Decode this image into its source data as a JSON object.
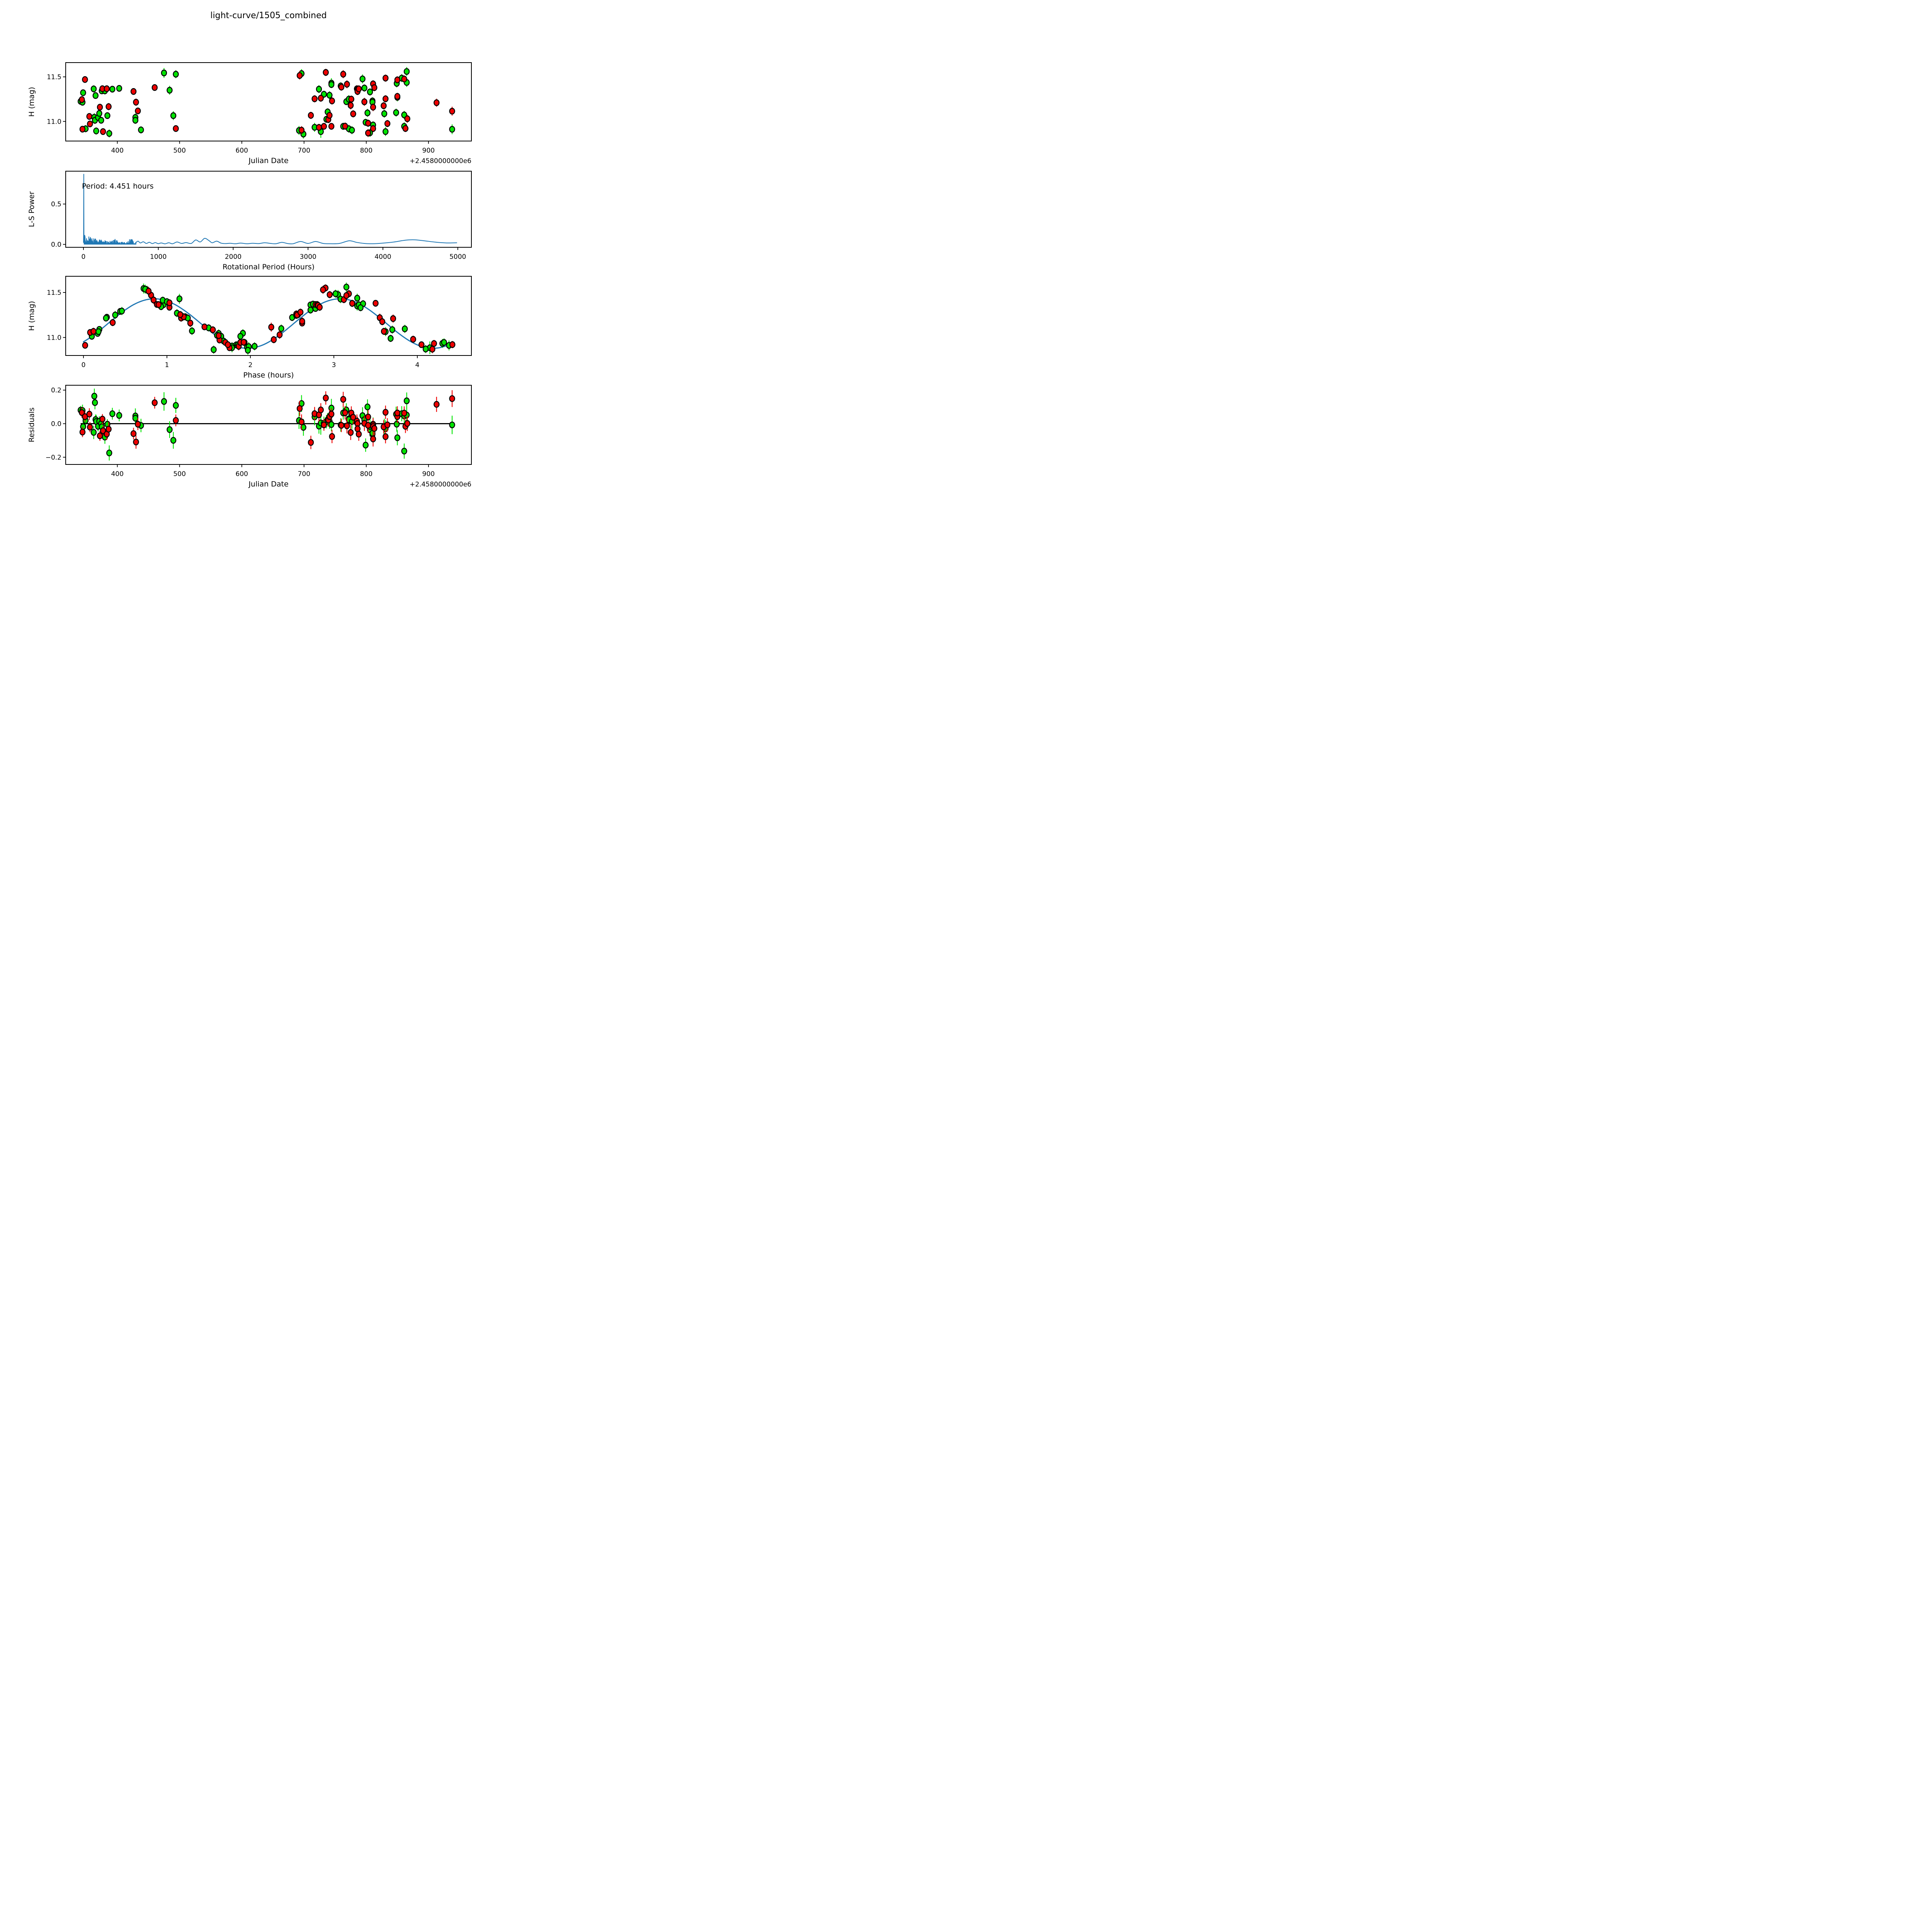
{
  "title": "light-curve/1505_combined",
  "colors": {
    "green_series": "#00e400",
    "red_series": "#ef0000",
    "marker_edge": "#000000",
    "fit_curve": "#1f77b4",
    "axes": "#000000",
    "zero_line": "#000000",
    "background": "#ffffff"
  },
  "observations": {
    "fields": [
      "jd_minus_2458000",
      "h_mag",
      "err_mag",
      "series",
      "phase_hours"
    ],
    "rows": [
      [
        341,
        11.225,
        0.025,
        "g",
        0.28
      ],
      [
        343,
        11.245,
        0.03,
        "r",
        2.55
      ],
      [
        344,
        11.215,
        0.035,
        "g",
        0.27
      ],
      [
        344,
        10.913,
        0.03,
        "r",
        0.02
      ],
      [
        345,
        11.322,
        0.035,
        "g",
        2.78
      ],
      [
        348,
        11.47,
        0.03,
        "r",
        0.81
      ],
      [
        349,
        10.918,
        0.04,
        "g",
        1.83
      ],
      [
        355,
        11.056,
        0.035,
        "r",
        0.08
      ],
      [
        356,
        10.972,
        0.03,
        "r",
        1.63
      ],
      [
        362,
        11.365,
        0.04,
        "g",
        0.96
      ],
      [
        363,
        11.047,
        0.045,
        "g",
        1.91
      ],
      [
        365,
        11.29,
        0.03,
        "g",
        0.44
      ],
      [
        364,
        11.013,
        0.04,
        "g",
        1.88
      ],
      [
        366,
        10.893,
        0.04,
        "g",
        1.96
      ],
      [
        369,
        11.045,
        0.03,
        "g",
        0.17
      ],
      [
        371,
        11.09,
        0.03,
        "g",
        0.19
      ],
      [
        372,
        11.16,
        0.03,
        "r",
        2.62
      ],
      [
        374,
        11.013,
        0.035,
        "g",
        0.1
      ],
      [
        375,
        11.343,
        0.03,
        "g",
        2.82
      ],
      [
        376,
        11.367,
        0.03,
        "r",
        2.78
      ],
      [
        377,
        10.886,
        0.03,
        "r",
        1.75
      ],
      [
        380,
        11.343,
        0.04,
        "g",
        0.93
      ],
      [
        383,
        11.367,
        0.035,
        "r",
        0.88
      ],
      [
        384,
        11.065,
        0.03,
        "g",
        0.18
      ],
      [
        386,
        11.166,
        0.04,
        "r",
        0.35
      ],
      [
        387,
        10.865,
        0.045,
        "g",
        1.56
      ],
      [
        392,
        11.362,
        0.035,
        "g",
        2.72
      ],
      [
        403,
        11.371,
        0.035,
        "g",
        2.75
      ],
      [
        426,
        11.336,
        0.035,
        "r",
        1.03
      ],
      [
        430,
        11.216,
        0.04,
        "r",
        1.17
      ],
      [
        433,
        11.118,
        0.035,
        "r",
        1.45
      ],
      [
        429,
        11.045,
        0.045,
        "g",
        1.62
      ],
      [
        429,
        11.013,
        0.04,
        "g",
        1.65
      ],
      [
        438,
        10.905,
        0.04,
        "g",
        1.78
      ],
      [
        460,
        11.38,
        0.035,
        "r",
        3.5
      ],
      [
        475,
        11.544,
        0.055,
        "g",
        0.72
      ],
      [
        484,
        11.35,
        0.05,
        "g",
        3.28
      ],
      [
        490,
        11.065,
        0.05,
        "g",
        3.62
      ],
      [
        494,
        11.53,
        0.045,
        "g",
        0.76
      ],
      [
        494,
        10.92,
        0.035,
        "r",
        4.05
      ],
      [
        692,
        10.899,
        0.05,
        "g",
        1.98
      ],
      [
        693,
        11.515,
        0.045,
        "r",
        0.78
      ],
      [
        696,
        11.537,
        0.05,
        "g",
        0.74
      ],
      [
        696,
        10.902,
        0.045,
        "r",
        1.86
      ],
      [
        699,
        10.858,
        0.05,
        "g",
        1.97
      ],
      [
        711,
        11.068,
        0.04,
        "r",
        3.6
      ],
      [
        717,
        11.254,
        0.04,
        "r",
        2.57
      ],
      [
        717,
        10.934,
        0.05,
        "g",
        4.3
      ],
      [
        724,
        11.362,
        0.045,
        "g",
        3.3
      ],
      [
        724,
        10.933,
        0.04,
        "r",
        4.2
      ],
      [
        727,
        11.261,
        0.04,
        "r",
        2.55
      ],
      [
        727,
        10.886,
        0.07,
        "g",
        4.15
      ],
      [
        732,
        11.305,
        0.04,
        "g",
        2.72
      ],
      [
        732,
        10.945,
        0.035,
        "r",
        1.7
      ],
      [
        735,
        11.55,
        0.04,
        "r",
        2.9
      ],
      [
        736,
        11.024,
        0.04,
        "g",
        1.6
      ],
      [
        738,
        11.107,
        0.04,
        "g",
        1.5
      ],
      [
        739,
        11.021,
        0.04,
        "r",
        1.62
      ],
      [
        741,
        11.294,
        0.045,
        "g",
        0.46
      ],
      [
        741,
        11.068,
        0.04,
        "r",
        0.12
      ],
      [
        744,
        11.43,
        0.055,
        "g",
        1.15
      ],
      [
        744,
        11.414,
        0.04,
        "g",
        0.95
      ],
      [
        744,
        10.945,
        0.035,
        "r",
        1.88
      ],
      [
        745,
        11.23,
        0.04,
        "r",
        1.2
      ],
      [
        759,
        11.398,
        0.04,
        "g",
        1.0
      ],
      [
        760,
        11.385,
        0.04,
        "r",
        1.03
      ],
      [
        763,
        11.53,
        0.045,
        "r",
        2.87
      ],
      [
        763,
        10.945,
        0.04,
        "g",
        1.93
      ],
      [
        766,
        10.947,
        0.04,
        "r",
        1.92
      ],
      [
        768,
        11.222,
        0.04,
        "g",
        2.5
      ],
      [
        769,
        11.417,
        0.045,
        "r",
        0.84
      ],
      [
        772,
        11.25,
        0.045,
        "g",
        0.38
      ],
      [
        772,
        10.918,
        0.045,
        "g",
        1.85
      ],
      [
        775,
        11.18,
        0.045,
        "r",
        2.62
      ],
      [
        776,
        11.25,
        0.04,
        "r",
        2.56
      ],
      [
        777,
        10.902,
        0.045,
        "g",
        2.05
      ],
      [
        779,
        11.085,
        0.04,
        "r",
        1.55
      ],
      [
        785,
        11.366,
        0.04,
        "r",
        2.8
      ],
      [
        786,
        11.357,
        0.04,
        "r",
        2.81
      ],
      [
        786,
        11.336,
        0.04,
        "r",
        2.83
      ],
      [
        788,
        11.365,
        0.04,
        "r",
        0.9
      ],
      [
        794,
        11.477,
        0.05,
        "g",
        3.05
      ],
      [
        797,
        11.375,
        0.04,
        "g",
        3.35
      ],
      [
        797,
        11.22,
        0.045,
        "r",
        3.55
      ],
      [
        799,
        10.99,
        0.04,
        "g",
        3.68
      ],
      [
        802,
        11.096,
        0.045,
        "g",
        3.85
      ],
      [
        803,
        10.98,
        0.04,
        "r",
        3.95
      ],
      [
        803,
        10.87,
        0.045,
        "r",
        4.18
      ],
      [
        806,
        11.331,
        0.04,
        "g",
        3.32
      ],
      [
        806,
        10.872,
        0.045,
        "g",
        4.1
      ],
      [
        810,
        11.23,
        0.04,
        "g",
        1.22
      ],
      [
        810,
        11.216,
        0.04,
        "g",
        1.25
      ],
      [
        811,
        11.421,
        0.04,
        "r",
        3.12
      ],
      [
        811,
        11.16,
        0.045,
        "r",
        1.28
      ],
      [
        811,
        10.96,
        0.04,
        "g",
        1.68
      ],
      [
        811,
        10.92,
        0.04,
        "r",
        1.73
      ],
      [
        813,
        11.379,
        0.04,
        "r",
        3.22
      ],
      [
        828,
        11.176,
        0.04,
        "r",
        3.58
      ],
      [
        829,
        11.087,
        0.045,
        "g",
        3.7
      ],
      [
        831,
        11.486,
        0.04,
        "r",
        3.18
      ],
      [
        831,
        11.254,
        0.04,
        "r",
        1.16
      ],
      [
        831,
        10.886,
        0.05,
        "g",
        1.78
      ],
      [
        834,
        10.976,
        0.04,
        "r",
        2.28
      ],
      [
        848,
        11.099,
        0.045,
        "g",
        2.37
      ],
      [
        849,
        11.427,
        0.045,
        "g",
        3.08
      ],
      [
        850,
        11.466,
        0.04,
        "r",
        3.15
      ],
      [
        850,
        11.281,
        0.04,
        "r",
        2.6
      ],
      [
        850,
        11.27,
        0.045,
        "g",
        1.12
      ],
      [
        857,
        11.486,
        0.045,
        "g",
        3.02
      ],
      [
        861,
        11.476,
        0.04,
        "r",
        2.95
      ],
      [
        861,
        11.073,
        0.045,
        "g",
        1.3
      ],
      [
        861,
        10.945,
        0.045,
        "g",
        4.32
      ],
      [
        863,
        10.921,
        0.04,
        "r",
        4.42
      ],
      [
        865,
        11.56,
        0.05,
        "g",
        3.15
      ],
      [
        865,
        11.437,
        0.05,
        "g",
        3.28
      ],
      [
        866,
        11.03,
        0.045,
        "r",
        2.35
      ],
      [
        913,
        11.21,
        0.045,
        "r",
        3.71
      ],
      [
        938,
        11.115,
        0.05,
        "r",
        2.25
      ],
      [
        938,
        10.912,
        0.055,
        "g",
        4.38
      ]
    ]
  },
  "chart_data": [
    {
      "type": "scatter",
      "panel_id": "jd-magnitude-plot",
      "xlabel": "Julian Date",
      "ylabel": "H (mag)",
      "x_offset_label": "+2.4580000000e6",
      "xlim": [
        317,
        969
      ],
      "ylim": [
        10.78,
        11.66
      ],
      "x_ticks": [
        400,
        500,
        600,
        700,
        800,
        900
      ],
      "x_tick_labels": [
        "400",
        "500",
        "600",
        "700",
        "800",
        "900"
      ],
      "y_ticks": [
        11.0,
        11.5
      ],
      "y_tick_labels": [
        "11.0",
        "11.5"
      ],
      "points_from": "observations",
      "x_field": "jd_minus_2458000",
      "y_field": "h_mag",
      "legend": "none",
      "grid": false
    },
    {
      "type": "line",
      "panel_id": "periodogram-plot",
      "xlabel": "Rotational Period (Hours)",
      "ylabel": "L-S Power",
      "xlim": [
        -237,
        5182
      ],
      "ylim": [
        -0.036,
        0.907
      ],
      "x_ticks": [
        0,
        1000,
        2000,
        3000,
        4000,
        5000
      ],
      "x_tick_labels": [
        "0",
        "1000",
        "2000",
        "3000",
        "4000",
        "5000"
      ],
      "y_ticks": [
        0.0,
        0.5
      ],
      "y_tick_labels": [
        "0.0",
        "0.5"
      ],
      "annotation": "Period: 4.451 hours",
      "best_period_hours": 4.451,
      "main_peak": {
        "x": 4.451,
        "power": 0.869
      },
      "noise_region": {
        "x_start": 9,
        "x_end": 698,
        "envelope_near": 0.125,
        "envelope_near_tau": 28,
        "envelope_floor_near": 0.042,
        "envelope_far": 0.08,
        "envelope_far_tau": 240,
        "envelope_floor_far": 0.014,
        "bumps": [
          {
            "x": 420,
            "h": 0.03,
            "w": 40
          },
          {
            "x": 635,
            "h": 0.045,
            "w": 50
          }
        ]
      },
      "smooth_samples": [
        [
          700,
          0.022
        ],
        [
          730,
          0.04
        ],
        [
          760,
          0.018
        ],
        [
          800,
          0.032
        ],
        [
          840,
          0.012
        ],
        [
          880,
          0.026
        ],
        [
          920,
          0.01
        ],
        [
          960,
          0.022
        ],
        [
          1000,
          0.009
        ],
        [
          1040,
          0.018
        ],
        [
          1090,
          0.007
        ],
        [
          1140,
          0.02
        ],
        [
          1190,
          0.008
        ],
        [
          1250,
          0.03
        ],
        [
          1310,
          0.012
        ],
        [
          1370,
          0.022
        ],
        [
          1440,
          0.012
        ],
        [
          1500,
          0.055
        ],
        [
          1560,
          0.03
        ],
        [
          1620,
          0.075
        ],
        [
          1680,
          0.045
        ],
        [
          1720,
          0.02
        ],
        [
          1780,
          0.04
        ],
        [
          1840,
          0.015
        ],
        [
          1900,
          0.01
        ],
        [
          1960,
          0.014
        ],
        [
          2030,
          0.008
        ],
        [
          2100,
          0.016
        ],
        [
          2180,
          0.008
        ],
        [
          2260,
          0.014
        ],
        [
          2340,
          0.01
        ],
        [
          2420,
          0.02
        ],
        [
          2500,
          0.012
        ],
        [
          2570,
          0.008
        ],
        [
          2650,
          0.025
        ],
        [
          2730,
          0.01
        ],
        [
          2800,
          0.008
        ],
        [
          2900,
          0.036
        ],
        [
          3000,
          0.012
        ],
        [
          3100,
          0.036
        ],
        [
          3200,
          0.012
        ],
        [
          3300,
          0.008
        ],
        [
          3420,
          0.012
        ],
        [
          3550,
          0.045
        ],
        [
          3650,
          0.025
        ],
        [
          3750,
          0.012
        ],
        [
          3850,
          0.008
        ],
        [
          3950,
          0.012
        ],
        [
          4050,
          0.02
        ],
        [
          4150,
          0.03
        ],
        [
          4300,
          0.052
        ],
        [
          4420,
          0.057
        ],
        [
          4550,
          0.045
        ],
        [
          4700,
          0.028
        ],
        [
          4850,
          0.018
        ],
        [
          4990,
          0.02
        ]
      ],
      "grid": false
    },
    {
      "type": "scatter+line",
      "panel_id": "phase-folded-plot",
      "xlabel": "Phase (hours)",
      "ylabel": "H (mag)",
      "xlim": [
        -0.213,
        4.648
      ],
      "ylim": [
        10.8,
        11.68
      ],
      "x_ticks": [
        0,
        1,
        2,
        3,
        4
      ],
      "x_tick_labels": [
        "0",
        "1",
        "2",
        "3",
        "4"
      ],
      "y_ticks": [
        11.0,
        11.5
      ],
      "y_tick_labels": [
        "11.0",
        "11.5"
      ],
      "model": {
        "mean_mag": 11.155,
        "amplitude_mag": 0.275,
        "fold_period_hours": 4.451,
        "sine_period_hours": 2.2255,
        "peak_phase_hours": 0.85,
        "curve_x_range": [
          0,
          4.451
        ]
      },
      "points_from": "observations",
      "x_field": "phase_hours",
      "y_field": "h_mag",
      "grid": false
    },
    {
      "type": "scatter",
      "panel_id": "residuals-plot",
      "xlabel": "Julian Date",
      "ylabel": "Residuals",
      "x_offset_label": "+2.4580000000e6",
      "xlim": [
        317,
        969
      ],
      "ylim": [
        -0.243,
        0.229
      ],
      "x_ticks": [
        400,
        500,
        600,
        700,
        800,
        900
      ],
      "x_tick_labels": [
        "400",
        "500",
        "600",
        "700",
        "800",
        "900"
      ],
      "y_ticks": [
        -0.2,
        0.0,
        0.2
      ],
      "y_tick_labels": [
        "−0.2",
        "0.0",
        "0.2"
      ],
      "zero_line": {
        "y": 0.0,
        "x_from": 341,
        "x_to": 938
      },
      "points_from": "observations",
      "x_field": "jd_minus_2458000",
      "y_field": "h_mag_minus_model",
      "grid": false
    }
  ]
}
